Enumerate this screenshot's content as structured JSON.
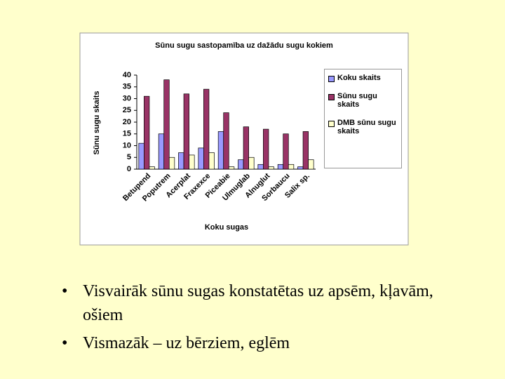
{
  "chart_data": {
    "type": "bar",
    "title": "Sūnu sugu sastopamība uz dažādu sugu kokiem",
    "x_label": "Koku sugas",
    "y_label": "Sūnu sugu skaits",
    "categories": [
      "Betupend",
      "Poputrem",
      "Acerplat",
      "Fraxexce",
      "Piceabie",
      "Ulmuglab",
      "Alnuglut",
      "Sorbaucu",
      "Salix sp."
    ],
    "series": [
      {
        "name": "Koku skaits",
        "color": "#9999ff",
        "values": [
          11,
          15,
          7,
          9,
          16,
          4,
          2,
          2,
          1
        ]
      },
      {
        "name": "Sūnu sugu skaits",
        "color": "#993366",
        "values": [
          31,
          38,
          32,
          34,
          24,
          18,
          17,
          15,
          16
        ]
      },
      {
        "name": "DMB sūnu sugu skaits",
        "color": "#ffffcc",
        "values": [
          1,
          5,
          6,
          7,
          1,
          5,
          1,
          2,
          4
        ]
      }
    ],
    "ylim": [
      0,
      40
    ],
    "yticks": [
      0,
      5,
      10,
      15,
      20,
      25,
      30,
      35,
      40
    ],
    "legend": "right"
  },
  "bullets": [
    "Visvairāk sūnu sugas konstatētas uz apsēm, kļavām, ošiem",
    "Vismazāk – uz bērziem, eglēm"
  ]
}
